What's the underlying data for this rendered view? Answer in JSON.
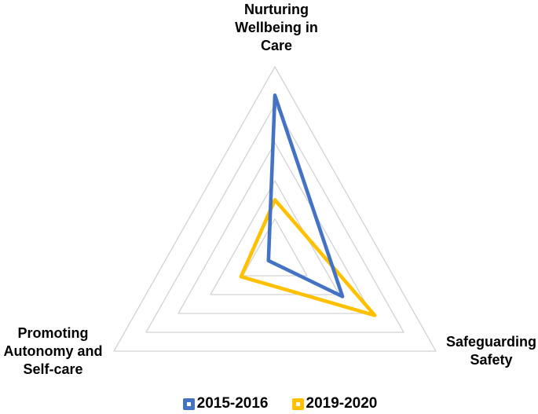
{
  "chart_data": {
    "type": "radar",
    "title": "",
    "axes": [
      "Nurturing Wellbeing in Care",
      "Safeguarding Safety",
      "Promoting Autonomy and Self-care"
    ],
    "ring_count": 5,
    "value_max": 1.0,
    "ring_step": 0.2,
    "grid_on": true,
    "grid_color": "#D2D2D2",
    "background_color": "#FFFFFF",
    "legend_position": "bottom",
    "series": [
      {
        "name": "2015-2016",
        "color": "#4472C4",
        "values": [
          0.85,
          0.42,
          0.04
        ]
      },
      {
        "name": "2019-2020",
        "color": "#FFC000",
        "values": [
          0.3,
          0.62,
          0.21
        ]
      }
    ]
  }
}
